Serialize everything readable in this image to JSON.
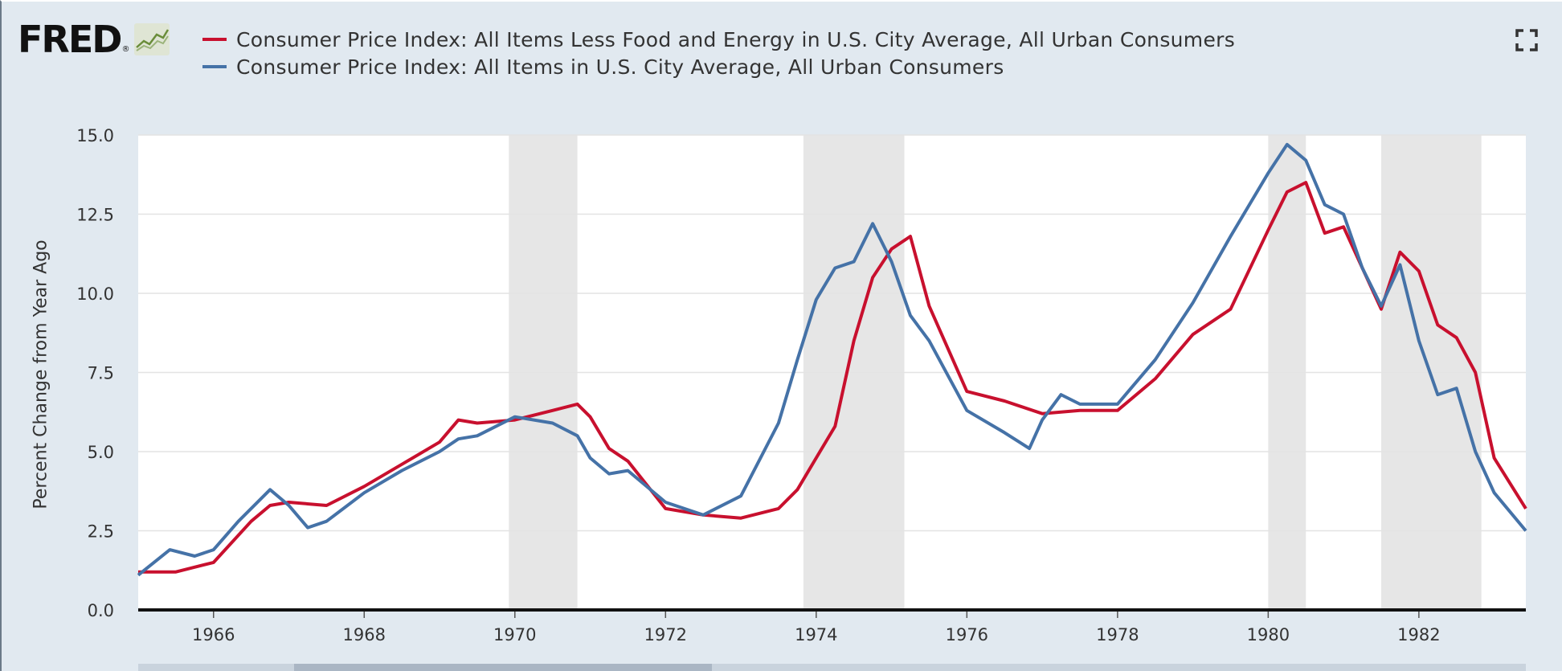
{
  "brand": {
    "name": "FRED",
    "reg": "®"
  },
  "legend": [
    {
      "name": "Consumer Price Index: All Items Less Food and Energy in U.S. City Average, All Urban Consumers",
      "color": "#c8102e"
    },
    {
      "name": "Consumer Price Index: All Items in U.S. City Average, All Urban Consumers",
      "color": "#4572a7"
    }
  ],
  "icons": {
    "logo_graph": "line-graph-icon",
    "fullscreen": "fullscreen-icon"
  },
  "chart_data": {
    "type": "line",
    "ylabel": "Percent Change from Year Ago",
    "xlabel": "",
    "xlim": [
      1965.0,
      1983.42
    ],
    "ylim": [
      0,
      15
    ],
    "y_ticks": [
      "0.0",
      "2.5",
      "5.0",
      "7.5",
      "10.0",
      "12.5",
      "15.0"
    ],
    "x_ticks": [
      "1966",
      "1968",
      "1970",
      "1972",
      "1974",
      "1976",
      "1978",
      "1980",
      "1982"
    ],
    "grid": "horizontal",
    "recessions": [
      [
        1969.92,
        1970.83
      ],
      [
        1973.83,
        1975.17
      ],
      [
        1980.0,
        1980.5
      ],
      [
        1981.5,
        1982.83
      ]
    ],
    "series": [
      {
        "name": "Consumer Price Index: All Items Less Food and Energy in U.S. City Average, All Urban Consumers",
        "color": "#c8102e",
        "x": [
          1965.0,
          1965.5,
          1966.0,
          1966.5,
          1966.75,
          1967.0,
          1967.5,
          1968.0,
          1968.5,
          1969.0,
          1969.25,
          1969.5,
          1970.0,
          1970.5,
          1970.83,
          1971.0,
          1971.25,
          1971.5,
          1972.0,
          1972.5,
          1973.0,
          1973.5,
          1973.75,
          1974.0,
          1974.25,
          1974.5,
          1974.75,
          1975.0,
          1975.25,
          1975.5,
          1976.0,
          1976.5,
          1977.0,
          1977.5,
          1978.0,
          1978.5,
          1979.0,
          1979.5,
          1980.0,
          1980.25,
          1980.5,
          1980.75,
          1981.0,
          1981.25,
          1981.5,
          1981.75,
          1982.0,
          1982.25,
          1982.5,
          1982.75,
          1983.0,
          1983.42
        ],
        "y": [
          1.2,
          1.2,
          1.5,
          2.8,
          3.3,
          3.4,
          3.3,
          3.9,
          4.6,
          5.3,
          6.0,
          5.9,
          6.0,
          6.3,
          6.5,
          6.1,
          5.1,
          4.7,
          3.2,
          3.0,
          2.9,
          3.2,
          3.8,
          4.8,
          5.8,
          8.5,
          10.5,
          11.4,
          11.8,
          9.6,
          6.9,
          6.6,
          6.2,
          6.3,
          6.3,
          7.3,
          8.7,
          9.5,
          12.0,
          13.2,
          13.5,
          11.9,
          12.1,
          10.8,
          9.5,
          11.3,
          10.7,
          9.0,
          8.6,
          7.5,
          4.8,
          3.2
        ]
      },
      {
        "name": "Consumer Price Index: All Items in U.S. City Average, All Urban Consumers",
        "color": "#4572a7",
        "x": [
          1965.0,
          1965.42,
          1965.75,
          1966.0,
          1966.33,
          1966.75,
          1967.0,
          1967.25,
          1967.5,
          1968.0,
          1968.5,
          1969.0,
          1969.25,
          1969.5,
          1970.0,
          1970.5,
          1970.83,
          1971.0,
          1971.25,
          1971.5,
          1972.0,
          1972.5,
          1973.0,
          1973.5,
          1973.75,
          1974.0,
          1974.25,
          1974.5,
          1974.75,
          1975.0,
          1975.25,
          1975.5,
          1976.0,
          1976.5,
          1976.83,
          1977.0,
          1977.25,
          1977.5,
          1978.0,
          1978.5,
          1979.0,
          1979.5,
          1980.0,
          1980.25,
          1980.5,
          1980.75,
          1981.0,
          1981.25,
          1981.5,
          1981.75,
          1982.0,
          1982.25,
          1982.5,
          1982.75,
          1983.0,
          1983.42
        ],
        "y": [
          1.1,
          1.9,
          1.7,
          1.9,
          2.8,
          3.8,
          3.3,
          2.6,
          2.8,
          3.7,
          4.4,
          5.0,
          5.4,
          5.5,
          6.1,
          5.9,
          5.5,
          4.8,
          4.3,
          4.4,
          3.4,
          3.0,
          3.6,
          5.9,
          7.9,
          9.8,
          10.8,
          11.0,
          12.2,
          11.0,
          9.3,
          8.5,
          6.3,
          5.6,
          5.1,
          6.0,
          6.8,
          6.5,
          6.5,
          7.9,
          9.7,
          11.8,
          13.8,
          14.7,
          14.2,
          12.8,
          12.5,
          10.8,
          9.6,
          10.9,
          8.5,
          6.8,
          7.0,
          5.0,
          3.7,
          2.5
        ]
      }
    ]
  }
}
